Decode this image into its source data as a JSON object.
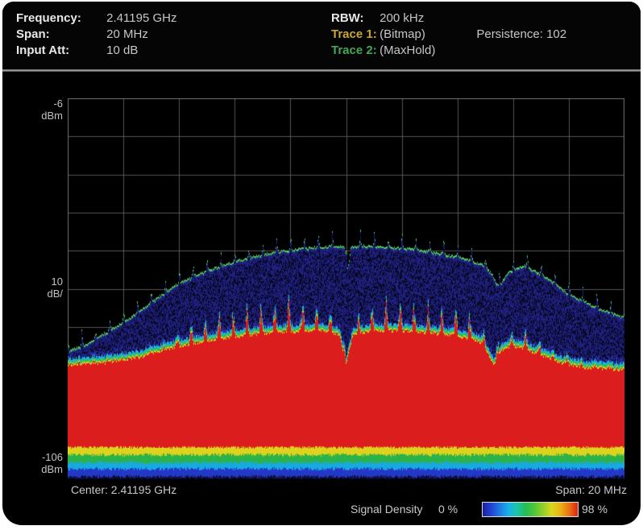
{
  "header": {
    "rows_left": [
      {
        "label": "Frequency:",
        "value": "2.41195 GHz"
      },
      {
        "label": "Span:",
        "value": "20 MHz"
      },
      {
        "label": "Input Att:",
        "value": "10 dB"
      }
    ],
    "rbw_label": "RBW:",
    "rbw_value": "200 kHz",
    "trace1_label": "Trace 1:",
    "trace1_value": "(Bitmap)",
    "trace1_color": "#c9a82e",
    "persistence_label": "Persistence:",
    "persistence_value": "102",
    "trace2_label": "Trace 2:",
    "trace2_value": "(MaxHold)",
    "trace2_color": "#43a854"
  },
  "axis_labels": {
    "top": {
      "line1": "-6",
      "line2": "dBm"
    },
    "mid": {
      "line1": "10",
      "line2": "dB/"
    },
    "bottom": {
      "line1": "-106",
      "line2": "dBm"
    }
  },
  "footer": {
    "center_text": "Center: 2.41195 GHz",
    "span_text": "Span: 20 MHz",
    "density_label": "Signal Density",
    "density_min": "0 %",
    "density_max": "98 %",
    "density_gradient": [
      "#1a1f9e",
      "#2342d4",
      "#1e7ce2",
      "#19b2e8",
      "#1ac4a8",
      "#27bd52",
      "#4fc63a",
      "#95ce28",
      "#d9d71e",
      "#e9b117",
      "#e97414",
      "#dc2413"
    ]
  },
  "chart_data": {
    "type": "heatmap",
    "title": "Persistence spectrum bitmap (Trace 1 Bitmap, Trace 2 MaxHold)",
    "x_axis": {
      "center_ghz": 2.41195,
      "span_mhz": 20,
      "start_ghz": 2.40195,
      "stop_ghz": 2.42195
    },
    "y_axis": {
      "top_dbm": -6,
      "bottom_dbm": -106,
      "db_per_div": 10,
      "divisions": 10
    },
    "grid": {
      "cols": 10,
      "rows": 10,
      "color": "#555555",
      "border_color": "#6e6e6e"
    },
    "palette": {
      "background": "#000000",
      "persistence_blue": "#1f2080",
      "bright_blue": "#2b2fa6",
      "maxhold_green": "#4cc65a",
      "hot_red": "#dc1d1d",
      "trans_yellow": "#e0d020",
      "trans_green": "#2fbf4f",
      "trans_cyan": "#1cb4e8",
      "speckle": "#020208"
    },
    "maxhold_envelope_dbm": [
      [
        0.0,
        -72.6
      ],
      [
        0.03,
        -70.7
      ],
      [
        0.07,
        -67.5
      ],
      [
        0.11,
        -63.9
      ],
      [
        0.15,
        -59.7
      ],
      [
        0.19,
        -55.5
      ],
      [
        0.23,
        -52.5
      ],
      [
        0.27,
        -50.4
      ],
      [
        0.31,
        -48.5
      ],
      [
        0.36,
        -46.8
      ],
      [
        0.41,
        -45.7
      ],
      [
        0.46,
        -45.1
      ],
      [
        0.49,
        -44.8
      ],
      [
        0.497,
        -45.0
      ],
      [
        0.503,
        -51.2
      ],
      [
        0.509,
        -45.0
      ],
      [
        0.52,
        -44.8
      ],
      [
        0.57,
        -45.1
      ],
      [
        0.62,
        -45.7
      ],
      [
        0.67,
        -46.8
      ],
      [
        0.71,
        -47.9
      ],
      [
        0.75,
        -50.0
      ],
      [
        0.763,
        -52.5
      ],
      [
        0.775,
        -55.7
      ],
      [
        0.79,
        -52.0
      ],
      [
        0.82,
        -50.0
      ],
      [
        0.86,
        -53.1
      ],
      [
        0.9,
        -57.4
      ],
      [
        0.95,
        -61.0
      ],
      [
        1.0,
        -63.7
      ]
    ],
    "red_top_envelope_dbm": [
      [
        0.0,
        -75.8
      ],
      [
        0.06,
        -75.3
      ],
      [
        0.12,
        -74.1
      ],
      [
        0.17,
        -72.0
      ],
      [
        0.22,
        -70.3
      ],
      [
        0.28,
        -68.8
      ],
      [
        0.34,
        -67.7
      ],
      [
        0.4,
        -67.1
      ],
      [
        0.46,
        -66.7
      ],
      [
        0.488,
        -68.0
      ],
      [
        0.5,
        -75.6
      ],
      [
        0.512,
        -68.0
      ],
      [
        0.55,
        -66.7
      ],
      [
        0.62,
        -67.1
      ],
      [
        0.68,
        -67.7
      ],
      [
        0.73,
        -69.2
      ],
      [
        0.748,
        -70.5
      ],
      [
        0.765,
        -75.8
      ],
      [
        0.785,
        -71.2
      ],
      [
        0.81,
        -71.0
      ],
      [
        0.84,
        -72.6
      ],
      [
        0.88,
        -74.9
      ],
      [
        0.93,
        -76.6
      ],
      [
        1.0,
        -77.0
      ]
    ],
    "ripple": {
      "period_mhz": 0.5,
      "maxhold_spike_db": 2.8,
      "streak_amp_db_profile": [
        [
          0.0,
          0.2
        ],
        [
          0.17,
          0.4
        ],
        [
          0.23,
          3.5
        ],
        [
          0.3,
          5.0
        ],
        [
          0.4,
          5.5
        ],
        [
          0.47,
          4.0
        ],
        [
          0.5,
          0.8
        ],
        [
          0.53,
          4.0
        ],
        [
          0.58,
          5.5
        ],
        [
          0.65,
          5.2
        ],
        [
          0.71,
          4.8
        ],
        [
          0.75,
          2.0
        ],
        [
          0.78,
          2.5
        ],
        [
          0.82,
          2.8
        ],
        [
          0.87,
          1.0
        ],
        [
          1.0,
          0.3
        ]
      ]
    },
    "noise_floor": {
      "red_bottom_dbm": -97.6,
      "bands": [
        {
          "color": "#ddd21e",
          "to_dbm": -99.6
        },
        {
          "color": "#2bb34a",
          "to_dbm": -101.6
        },
        {
          "color": "#17a9df",
          "to_dbm": -103.3
        },
        {
          "color": "#2438c8",
          "to_dbm": -105.3
        },
        {
          "color": "#0b103a",
          "to_dbm": -106.0
        }
      ]
    }
  }
}
